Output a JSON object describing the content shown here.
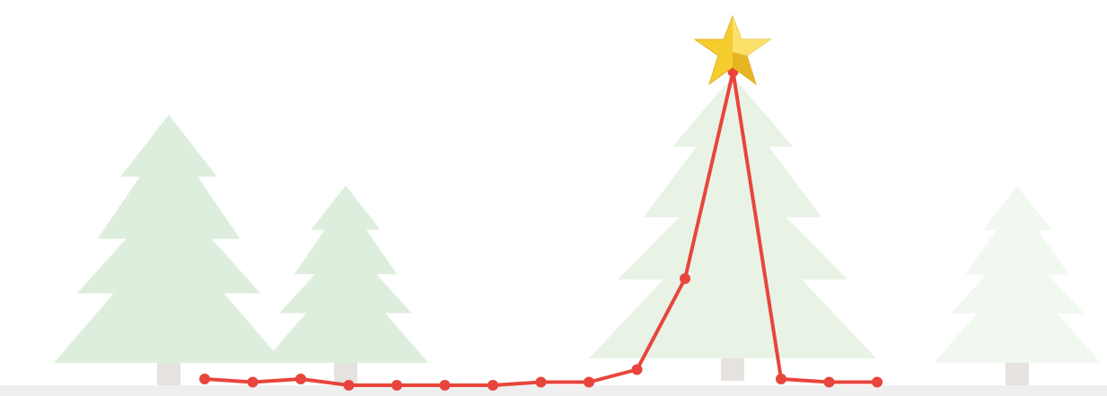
{
  "chart_data": {
    "type": "line",
    "categories": [
      null,
      null,
      null,
      null,
      null,
      null,
      null,
      null,
      null,
      null,
      null,
      null,
      null,
      null,
      null
    ],
    "series": [
      {
        "color": "#e8453c",
        "values": [
          2,
          1,
          2,
          0,
          0,
          0,
          0,
          1,
          1,
          5,
          34,
          100,
          2,
          1,
          1
        ]
      }
    ],
    "ylim": [
      0,
      100
    ]
  }
}
